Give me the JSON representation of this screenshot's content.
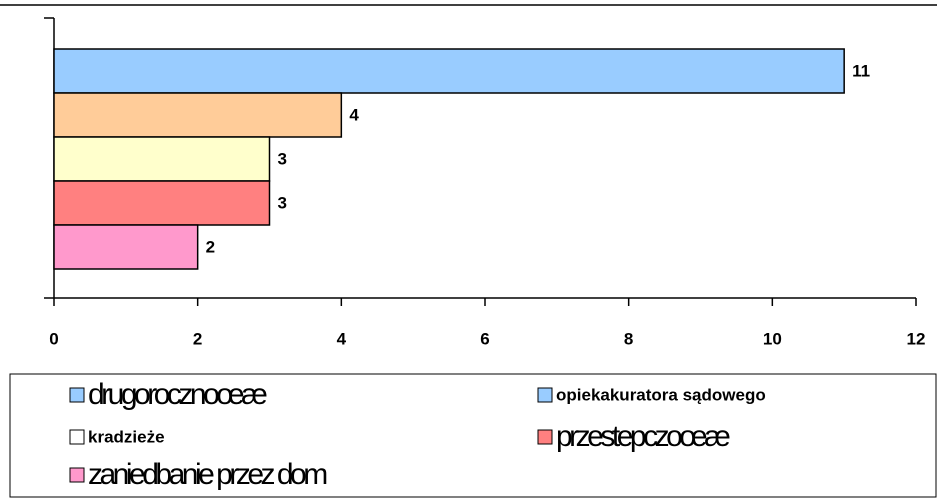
{
  "chart_data": {
    "type": "barh",
    "series": [
      {
        "name": "drugorocznoœæ",
        "color": "#99ccff",
        "legend_color": "#99ccff",
        "values": [
          11
        ]
      },
      {
        "name": "opiekakuratora sądowego",
        "color": "#ffcc99",
        "legend_color": "#99ccff",
        "values": [
          4
        ]
      },
      {
        "name": "kradzieże",
        "color": "#ffffcc",
        "legend_color": "#ffffff",
        "values": [
          3
        ]
      },
      {
        "name": "przestepczoœæ",
        "color": "#ff8080",
        "legend_color": "#ff8080",
        "values": [
          3
        ]
      },
      {
        "name": "zaniedbanie przez dom",
        "color": "#ff99cc",
        "legend_color": "#ff99cc",
        "values": [
          2
        ]
      }
    ],
    "xlim": [
      0,
      12
    ],
    "xticks": [
      0,
      2,
      4,
      6,
      8,
      10,
      12
    ]
  }
}
